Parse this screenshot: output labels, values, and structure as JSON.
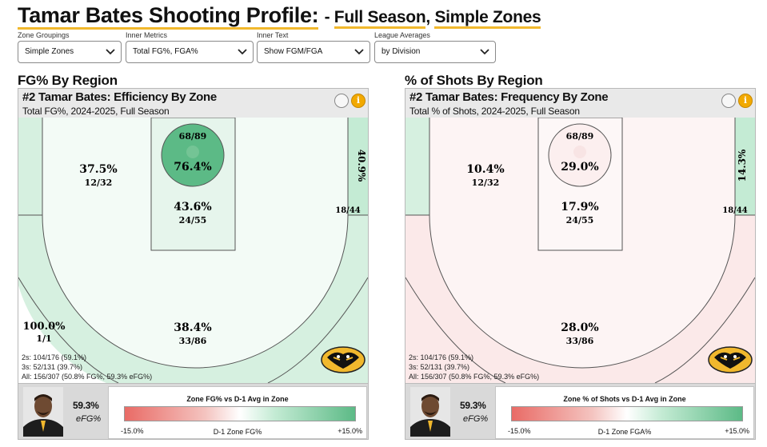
{
  "header": {
    "title_main": "Tamar Bates Shooting Profile:",
    "title_dash": "- ",
    "title_period": "Full Season",
    "title_comma": ", ",
    "title_zones": "Simple Zones"
  },
  "filters": [
    {
      "label": "Zone Groupings",
      "value": "Simple Zones"
    },
    {
      "label": "Inner Metrics",
      "value": "Total FG%, FGA%"
    },
    {
      "label": "Inner Text",
      "value": "Show FGM/FGA"
    },
    {
      "label": "League Averages",
      "value": "by Division"
    }
  ],
  "colors": {
    "accent": "#f1b82d",
    "above_avg_strong": "#5cba86",
    "above_avg_light": "#d6f0e0",
    "below_avg_light": "#fdeeee",
    "neutral": "#ffffff"
  },
  "left": {
    "section_title": "FG% By Region",
    "card_title": "#2 Tamar Bates: Efficiency By Zone",
    "card_sub": "Total FG%, 2024-2025, Full Season",
    "zones": {
      "rim_top": "68/89",
      "rim_pct": "76.4%",
      "paint_pct": "43.6%",
      "paint_frac": "24/55",
      "left_mid_pct": "37.5%",
      "left_mid_frac": "12/32",
      "right_corner_pct": "40.9%",
      "right_corner_frac": "18/44",
      "left_corner_pct": "100.0%",
      "left_corner_frac": "1/1",
      "three_pct": "38.4%",
      "three_frac": "33/86"
    },
    "stats": [
      "2s: 104/176 (59.1%)",
      "3s: 52/131 (39.7%)",
      "All: 156/307 (50.8% FG%, 59.3% eFG%)"
    ],
    "footer_value": "59.3%",
    "footer_label": "eFG%",
    "legend_title": "Zone FG% vs D-1 Avg in Zone",
    "legend_min": "-15.0%",
    "legend_max": "+15.0%",
    "legend_axis": "D-1 Zone FG%"
  },
  "right": {
    "section_title": "% of Shots By Region",
    "card_title": "#2 Tamar Bates: Frequency By Zone",
    "card_sub": "Total % of Shots, 2024-2025, Full Season",
    "zones": {
      "rim_top": "68/89",
      "rim_pct": "29.0%",
      "paint_pct": "17.9%",
      "paint_frac": "24/55",
      "left_mid_pct": "10.4%",
      "left_mid_frac": "12/32",
      "right_corner_pct": "14.3%",
      "right_corner_frac": "18/44",
      "three_pct": "28.0%",
      "three_frac": "33/86"
    },
    "stats": [
      "2s: 104/176 (59.1%)",
      "3s: 52/131 (39.7%)",
      "All: 156/307 (50.8% FG%, 59.3% eFG%)"
    ],
    "footer_value": "59.3%",
    "footer_label": "eFG%",
    "legend_title": "Zone % of Shots vs D-1 Avg in Zone",
    "legend_min": "-15.0%",
    "legend_max": "+15.0%",
    "legend_axis": "D-1 Zone FGA%"
  }
}
